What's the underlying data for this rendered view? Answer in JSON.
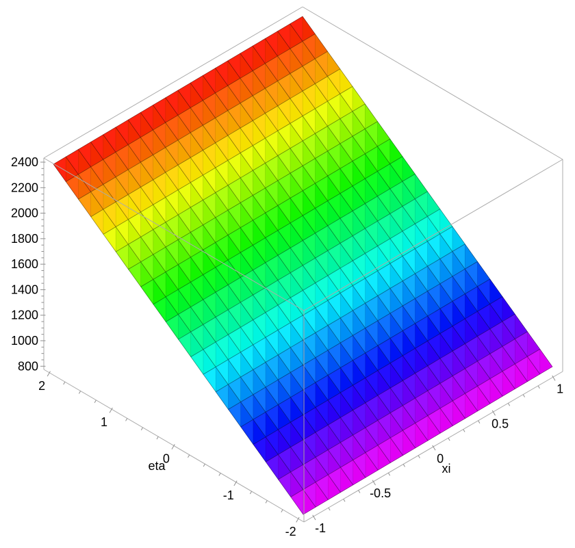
{
  "chart_data": {
    "type": "surface3d",
    "projection": "axonometric box, z vertical",
    "axes": {
      "xi": {
        "label": "xi",
        "min": -1,
        "max": 1,
        "major_ticks": [
          -1,
          -0.5,
          0,
          0.5,
          1
        ],
        "tick_labels": [
          "-1",
          "-0.5",
          "0",
          "0.5",
          "1"
        ],
        "minor_ticks_per_interval": 3
      },
      "eta": {
        "label": "eta",
        "min": -2,
        "max": 2,
        "major_ticks": [
          2,
          1,
          0,
          -1,
          -2
        ],
        "tick_labels": [
          "2",
          "1",
          "0",
          "-1",
          "-2"
        ],
        "minor_ticks_per_interval": 3
      },
      "z": {
        "min": 800,
        "max": 2400,
        "major_ticks": [
          800,
          1000,
          1200,
          1400,
          1600,
          1800,
          2000,
          2200,
          2400
        ],
        "tick_labels": [
          "800",
          "1000",
          "1200",
          "1400",
          "1600",
          "1800",
          "2000",
          "2200",
          "2400"
        ],
        "minor_ticks_per_interval": 3
      }
    },
    "surface": {
      "grid_rows": 20,
      "grid_cols": 20,
      "function": "z is a planar ramp, z ~ 1600 + 400*eta (slight -xi tilt)",
      "z_at_corners": {
        "xi=-1,eta=2": 2390,
        "xi=1,eta=2": 2340,
        "xi=-1,eta=-2": 850,
        "xi=1,eta=-2": 800
      },
      "colormap": {
        "type": "rainbow-hue",
        "mapped_to": "eta (height)",
        "hue_high_deg": 0,
        "hue_low_deg": 300,
        "high_color": "#ff2d17",
        "low_color": "#e600f2"
      }
    },
    "style": {
      "background": "#ffffff",
      "box_line_color": "#ababab",
      "tick_color": "#8f8f8f",
      "label_color": "#000000",
      "mesh_line_color": "rgba(0,0,0,0.45)",
      "mesh_diagonal_color": "rgba(0,0,0,0.15)"
    }
  }
}
